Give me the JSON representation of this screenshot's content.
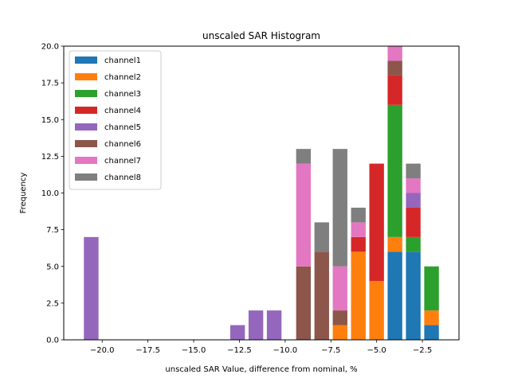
{
  "chart_data": {
    "type": "bar",
    "stacked": true,
    "title": "unscaled SAR Histogram",
    "xlabel": "unscaled SAR Value, difference from nominal, %",
    "ylabel": "Frequency",
    "xlim": [
      -22.1,
      -0.5
    ],
    "ylim": [
      0,
      20
    ],
    "bar_width": 0.8,
    "xticks": [
      -20.0,
      -17.5,
      -15.0,
      -12.5,
      -10.0,
      -7.5,
      -5.0,
      -2.5
    ],
    "xtick_labels": [
      "−20.0",
      "−17.5",
      "−15.0",
      "−12.5",
      "−10.0",
      "−7.5",
      "−5.0",
      "−2.5"
    ],
    "yticks": [
      0.0,
      2.5,
      5.0,
      7.5,
      10.0,
      12.5,
      15.0,
      17.5,
      20.0
    ],
    "ytick_labels": [
      "0.0",
      "2.5",
      "5.0",
      "7.5",
      "10.0",
      "12.5",
      "15.0",
      "17.5",
      "20.0"
    ],
    "legend_position": "upper-left",
    "series": [
      {
        "name": "channel1",
        "color": "#1f77b4",
        "points": [
          [
            -4.0,
            6
          ],
          [
            -3.0,
            6
          ],
          [
            -2.0,
            1
          ]
        ]
      },
      {
        "name": "channel2",
        "color": "#ff7f0e",
        "points": [
          [
            -7.0,
            1
          ],
          [
            -6.0,
            6
          ],
          [
            -5.0,
            4
          ],
          [
            -4.0,
            1
          ],
          [
            -2.0,
            1
          ]
        ]
      },
      {
        "name": "channel3",
        "color": "#2ca02c",
        "points": [
          [
            -4.0,
            9
          ],
          [
            -3.0,
            1
          ],
          [
            -2.0,
            3
          ]
        ]
      },
      {
        "name": "channel4",
        "color": "#d62728",
        "points": [
          [
            -6.0,
            1
          ],
          [
            -5.0,
            8
          ],
          [
            -4.0,
            2
          ],
          [
            -3.0,
            2
          ]
        ]
      },
      {
        "name": "channel5",
        "color": "#9467bd",
        "points": [
          [
            -20.6,
            7
          ],
          [
            -12.6,
            1
          ],
          [
            -11.6,
            2
          ],
          [
            -10.6,
            2
          ],
          [
            -3.0,
            1
          ]
        ]
      },
      {
        "name": "channel6",
        "color": "#8c564b",
        "points": [
          [
            -9.0,
            5
          ],
          [
            -8.0,
            6
          ],
          [
            -7.0,
            1
          ],
          [
            -4.0,
            1
          ]
        ]
      },
      {
        "name": "channel7",
        "color": "#e377c2",
        "points": [
          [
            -9.0,
            7
          ],
          [
            -7.0,
            3
          ],
          [
            -6.0,
            1
          ],
          [
            -4.0,
            1
          ],
          [
            -3.0,
            1
          ]
        ]
      },
      {
        "name": "channel8",
        "color": "#7f7f7f",
        "points": [
          [
            -9.0,
            1
          ],
          [
            -8.0,
            2
          ],
          [
            -7.0,
            8
          ],
          [
            -6.0,
            1
          ],
          [
            -3.0,
            1
          ]
        ]
      }
    ]
  }
}
